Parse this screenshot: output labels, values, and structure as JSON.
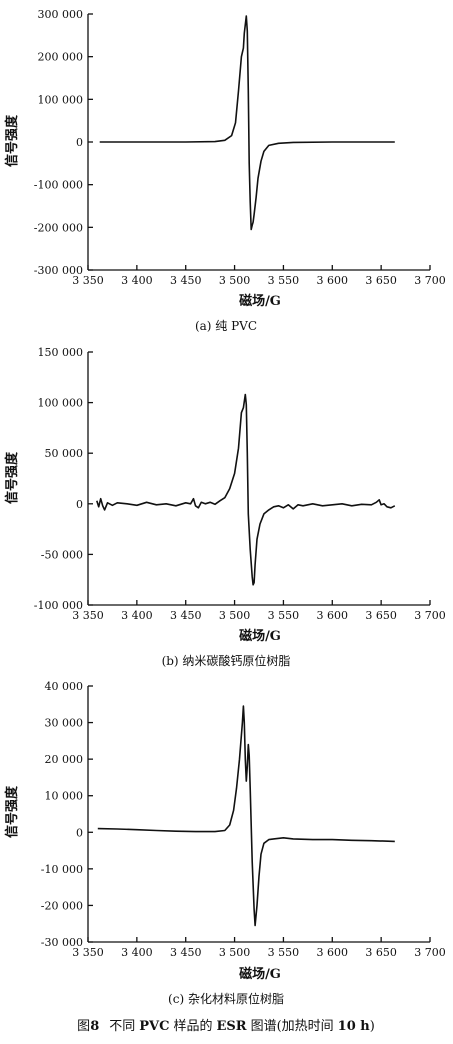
{
  "chart_data": [
    {
      "type": "line",
      "caption": "(a) 纯 PVC",
      "xlabel": "磁场/G",
      "ylabel": "信号强度",
      "xlim": [
        3350,
        3700
      ],
      "ylim": [
        -300000,
        300000
      ],
      "x_ticks": [
        "3 350",
        "3 400",
        "3 450",
        "3 500",
        "3 550",
        "3 600",
        "3 650",
        "3 700"
      ],
      "y_ticks": [
        "300 000",
        "200 000",
        "100 000",
        "0",
        "-100 000",
        "-200 000",
        "-300 000"
      ],
      "series": [
        {
          "x": [
            3362,
            3400,
            3450,
            3480,
            3490,
            3497,
            3501,
            3504,
            3507,
            3509,
            3510,
            3512,
            3513,
            3514,
            3515,
            3516,
            3517,
            3518,
            3519,
            3520,
            3522,
            3524,
            3527,
            3530,
            3535,
            3545,
            3560,
            3600,
            3664
          ],
          "y": [
            0,
            0,
            0,
            1000,
            4000,
            15000,
            45000,
            120000,
            200000,
            220000,
            255000,
            295000,
            260000,
            120000,
            -50000,
            -140000,
            -205000,
            -195000,
            -188000,
            -170000,
            -130000,
            -85000,
            -45000,
            -22000,
            -8000,
            -3000,
            -1000,
            0,
            0
          ]
        }
      ]
    },
    {
      "type": "line",
      "caption": "(b) 纳米碳酸钙原位树脂",
      "xlabel": "磁场/G",
      "ylabel": "信号强度",
      "xlim": [
        3350,
        3700
      ],
      "ylim": [
        -100000,
        150000
      ],
      "x_ticks": [
        "3 350",
        "3 400",
        "3 450",
        "3 500",
        "3 550",
        "3 600",
        "3 650",
        "3 700"
      ],
      "y_ticks": [
        "150 000",
        "100 000",
        "50 000",
        "0",
        "-50 000",
        "-100 000"
      ],
      "series": [
        {
          "x": [
            3359,
            3361,
            3363,
            3365,
            3367,
            3370,
            3375,
            3380,
            3390,
            3400,
            3410,
            3420,
            3430,
            3440,
            3450,
            3455,
            3458,
            3460,
            3463,
            3466,
            3470,
            3475,
            3480,
            3485,
            3490,
            3495,
            3500,
            3504,
            3507,
            3509,
            3511,
            3512,
            3513,
            3514,
            3516,
            3518,
            3519,
            3520,
            3521,
            3523,
            3526,
            3530,
            3535,
            3540,
            3545,
            3550,
            3555,
            3560,
            3565,
            3570,
            3580,
            3590,
            3600,
            3610,
            3620,
            3630,
            3640,
            3645,
            3648,
            3650,
            3653,
            3656,
            3660,
            3664
          ],
          "y": [
            3000,
            -3000,
            5000,
            -2000,
            -6000,
            1000,
            -1500,
            1000,
            0,
            -1500,
            1500,
            -1000,
            0,
            -2000,
            1000,
            0,
            5000,
            -2000,
            -4000,
            1500,
            0,
            1500,
            -500,
            3000,
            6000,
            15000,
            30000,
            55000,
            90000,
            95000,
            108000,
            98000,
            50000,
            -10000,
            -45000,
            -72000,
            -80000,
            -78000,
            -60000,
            -35000,
            -20000,
            -10000,
            -6000,
            -3000,
            -2000,
            -4000,
            -1000,
            -5000,
            -1000,
            -2000,
            0,
            -2000,
            -1000,
            0,
            -2000,
            -500,
            -1000,
            1500,
            4000,
            -1000,
            0,
            -3000,
            -4000,
            -2000
          ]
        }
      ]
    },
    {
      "type": "line",
      "caption": "(c) 杂化材料原位树脂",
      "xlabel": "磁场/G",
      "ylabel": "信号强度",
      "xlim": [
        3350,
        3700
      ],
      "ylim": [
        -30000,
        40000
      ],
      "x_ticks": [
        "3 350",
        "3 400",
        "3 450",
        "3 500",
        "3 550",
        "3 600",
        "3 650",
        "3 700"
      ],
      "y_ticks": [
        "40 000",
        "30 000",
        "20 000",
        "10 000",
        "0",
        "-10 000",
        "-20 000",
        "-30 000"
      ],
      "series": [
        {
          "x": [
            3360,
            3380,
            3400,
            3420,
            3440,
            3460,
            3480,
            3490,
            3495,
            3499,
            3502,
            3505,
            3508,
            3509,
            3510,
            3511,
            3512,
            3513,
            3514,
            3515,
            3516,
            3517,
            3518,
            3520,
            3521,
            3523,
            3525,
            3527,
            3530,
            3535,
            3540,
            3550,
            3560,
            3580,
            3600,
            3620,
            3640,
            3664
          ],
          "y": [
            1000,
            900,
            700,
            500,
            300,
            200,
            200,
            500,
            2000,
            6000,
            12000,
            20000,
            30000,
            34500,
            30000,
            20000,
            14000,
            18000,
            24000,
            21000,
            12000,
            2000,
            -8000,
            -21000,
            -25500,
            -20000,
            -12000,
            -6000,
            -3000,
            -2000,
            -1800,
            -1500,
            -1800,
            -2000,
            -2000,
            -2200,
            -2300,
            -2500
          ]
        }
      ]
    }
  ],
  "figure_caption": {
    "prefix": "图",
    "number": "8",
    "part1": "不同",
    "pvc": "PVC",
    "part2": "样品的",
    "esr": "ESR",
    "part3": "图谱(加热时间",
    "time": "10 h",
    "part4": ")"
  }
}
